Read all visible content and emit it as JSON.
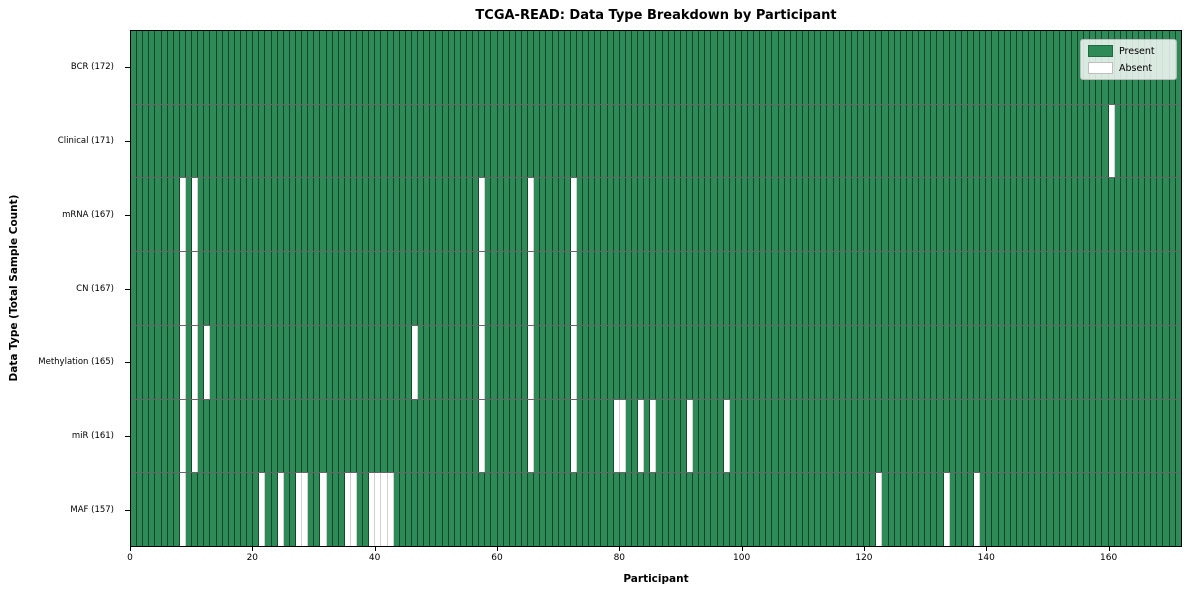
{
  "chart_data": {
    "type": "heatmap",
    "title": "TCGA-READ: Data Type Breakdown by Participant",
    "xlabel": "Participant",
    "ylabel": "Data Type (Total Sample Count)",
    "n_participants": 172,
    "x_ticks": [
      0,
      20,
      40,
      60,
      80,
      100,
      120,
      140,
      160
    ],
    "grid": "cell-borders",
    "legend_position": "upper-right",
    "colors": {
      "present": "#2e8b57",
      "absent": "#ffffff"
    },
    "legend": [
      {
        "label": "Present",
        "color": "#2e8b57"
      },
      {
        "label": "Absent",
        "color": "#ffffff"
      }
    ],
    "rows": [
      {
        "label": "BCR (172)",
        "data_type": "BCR",
        "total_sample_count": 172,
        "absent_participants": []
      },
      {
        "label": "Clinical (171)",
        "data_type": "Clinical",
        "total_sample_count": 171,
        "absent_participants": [
          160
        ]
      },
      {
        "label": "mRNA (167)",
        "data_type": "mRNA",
        "total_sample_count": 167,
        "absent_participants": [
          8,
          10,
          57,
          65,
          72
        ]
      },
      {
        "label": "CN (167)",
        "data_type": "CN",
        "total_sample_count": 167,
        "absent_participants": [
          8,
          10,
          57,
          65,
          72
        ]
      },
      {
        "label": "Methylation (165)",
        "data_type": "Methylation",
        "total_sample_count": 165,
        "absent_participants": [
          8,
          10,
          12,
          46,
          57,
          65,
          72
        ]
      },
      {
        "label": "miR (161)",
        "data_type": "miR",
        "total_sample_count": 161,
        "absent_participants": [
          8,
          10,
          57,
          65,
          72,
          79,
          80,
          83,
          85,
          91,
          97
        ]
      },
      {
        "label": "MAF (157)",
        "data_type": "MAF",
        "total_sample_count": 157,
        "absent_participants": [
          8,
          21,
          24,
          27,
          28,
          31,
          35,
          36,
          39,
          40,
          41,
          42,
          122,
          133,
          138
        ]
      }
    ]
  }
}
